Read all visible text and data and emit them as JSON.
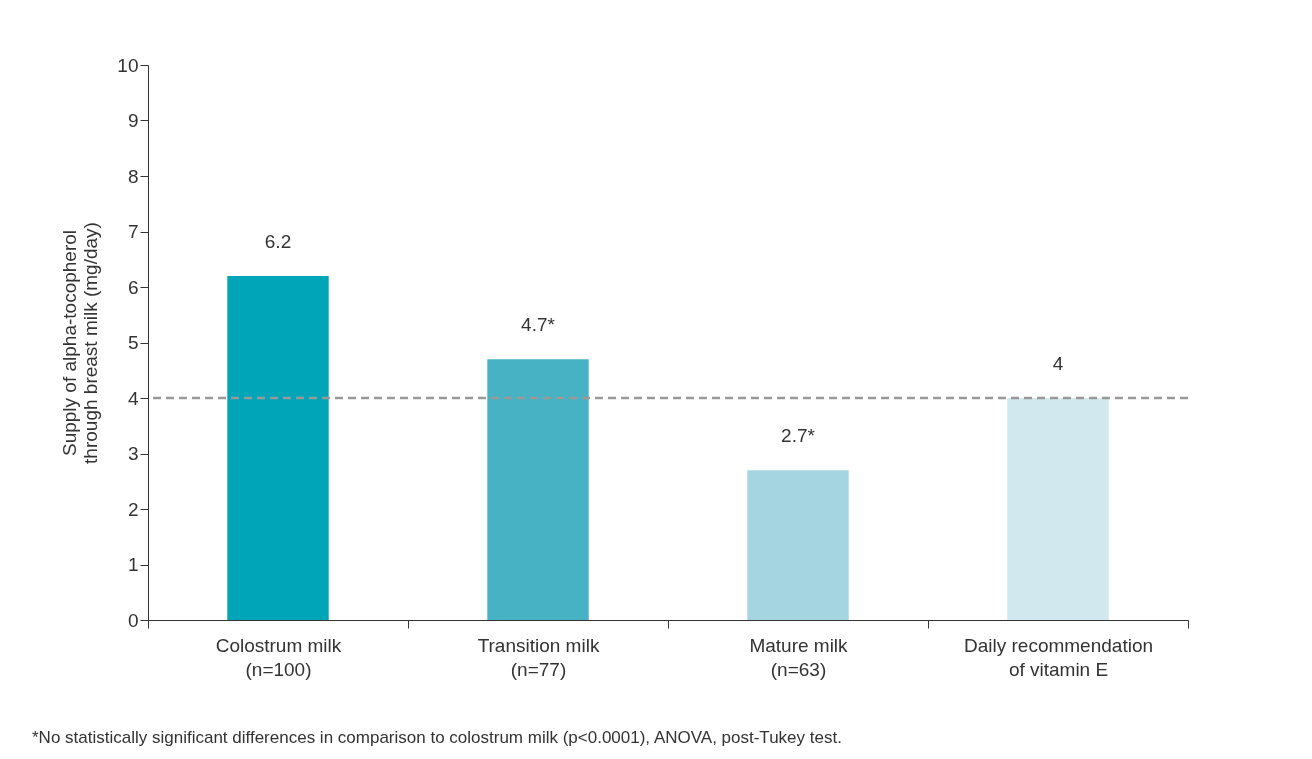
{
  "chart_data": {
    "type": "bar",
    "ylabel": "Supply of alpha-tocopherol\nthrough breast milk (mg/day)",
    "categories": [
      "Colostrum milk\n(n=100)",
      "Transition milk\n(n=77)",
      "Mature milk\n(n=63)",
      "Daily recommendation\nof vitamin E"
    ],
    "values": [
      6.2,
      4.7,
      2.7,
      4
    ],
    "colors": [
      "#00a5b8",
      "#48b2c5",
      "#a4d5e0",
      "#d0e8ee"
    ],
    "value_labels": [
      "6.2",
      "4.7*",
      "2.7*",
      "4"
    ],
    "ylim": [
      0,
      10
    ],
    "yticks": [
      0,
      1,
      2,
      3,
      4,
      5,
      6,
      7,
      8,
      9,
      10
    ],
    "grid": false,
    "ref_lines": [
      {
        "axis": "y",
        "value": 4,
        "color": "#999999",
        "line_style": "dashed"
      }
    ],
    "annotations": [
      "*No statistically significant differences in comparison to colostrum milk (p<0.0001), ANOVA, post-Tukey test."
    ]
  }
}
